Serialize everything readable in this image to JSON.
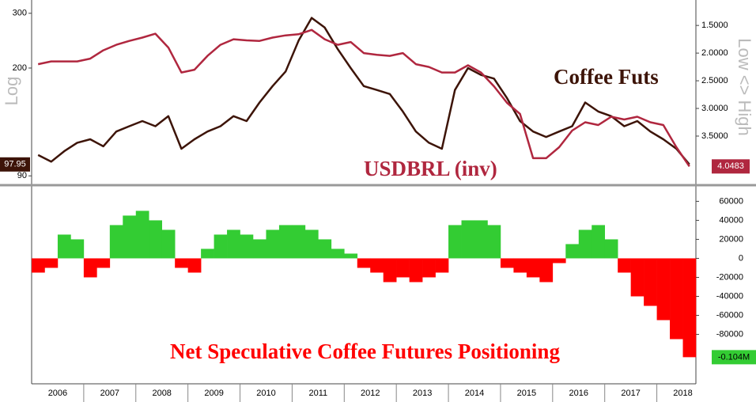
{
  "chart_data": [
    {
      "type": "line",
      "ylabel": "Log",
      "y2label": "Low <> High",
      "ylog": true,
      "ylim": [
        86,
        331
      ],
      "yticks": [
        90,
        200,
        300
      ],
      "y2lim": [
        1.04,
        4.33
      ],
      "y2_inverted": true,
      "y2ticks": [
        {
          "value": 1.5,
          "label": "1.5000"
        },
        {
          "value": 2.0,
          "label": "2.0000"
        },
        {
          "value": 2.5,
          "label": "2.5000"
        },
        {
          "value": 3.0,
          "label": "3.0000"
        },
        {
          "value": 3.5,
          "label": "3.5000"
        }
      ],
      "series": [
        {
          "name": "Coffee Futs",
          "color": "#3d1408",
          "axis": "y",
          "values": [
            105,
            100,
            108,
            115,
            118,
            112,
            125,
            130,
            135,
            130,
            140,
            110,
            118,
            125,
            130,
            140,
            135,
            155,
            175,
            195,
            245,
            290,
            270,
            230,
            200,
            175,
            170,
            165,
            145,
            125,
            115,
            110,
            170,
            200,
            190,
            185,
            160,
            135,
            125,
            120,
            125,
            130,
            155,
            145,
            140,
            130,
            135,
            125,
            118,
            110,
            97.95
          ]
        },
        {
          "name": "USDBRL (inv)",
          "color": "#b0273f",
          "axis": "y2",
          "values": [
            2.2,
            2.15,
            2.15,
            2.15,
            2.1,
            1.95,
            1.85,
            1.78,
            1.72,
            1.65,
            1.9,
            2.35,
            2.3,
            2.05,
            1.85,
            1.75,
            1.77,
            1.78,
            1.72,
            1.68,
            1.66,
            1.58,
            1.75,
            1.85,
            1.8,
            2.0,
            2.03,
            2.05,
            2.0,
            2.2,
            2.25,
            2.35,
            2.35,
            2.22,
            2.35,
            2.6,
            2.9,
            3.1,
            3.9,
            3.9,
            3.7,
            3.4,
            3.25,
            3.3,
            3.15,
            3.2,
            3.15,
            3.25,
            3.3,
            3.7,
            4.0483
          ]
        }
      ]
    },
    {
      "type": "bar",
      "title": "Net Speculative Coffee Futures Positioning",
      "categories": [
        null,
        "2006",
        null,
        null,
        null,
        "2007",
        null,
        null,
        null,
        "2008",
        null,
        null,
        null,
        "2009",
        null,
        null,
        null,
        "2010",
        null,
        null,
        null,
        "2011",
        null,
        null,
        null,
        "2012",
        null,
        null,
        null,
        "2013",
        null,
        null,
        null,
        "2014",
        null,
        null,
        null,
        "2015",
        null,
        null,
        null,
        "2016",
        null,
        null,
        null,
        "2017",
        null,
        null,
        null,
        "2018",
        null
      ],
      "values": [
        -15000,
        -10000,
        25000,
        20000,
        -20000,
        -10000,
        35000,
        45000,
        50000,
        40000,
        30000,
        -10000,
        -15000,
        10000,
        25000,
        30000,
        25000,
        20000,
        30000,
        35000,
        35000,
        30000,
        20000,
        10000,
        5000,
        -10000,
        -15000,
        -25000,
        -20000,
        -25000,
        -20000,
        -15000,
        35000,
        40000,
        40000,
        35000,
        -10000,
        -15000,
        -20000,
        -25000,
        -5000,
        15000,
        30000,
        35000,
        20000,
        -15000,
        -40000,
        -50000,
        -65000,
        -85000,
        -104000
      ],
      "value_labels": [
        null,
        null,
        null,
        null,
        null,
        null,
        null,
        null,
        null,
        null,
        null,
        null,
        null,
        null,
        null,
        null,
        null,
        null,
        null,
        null,
        null,
        null,
        null,
        null,
        null,
        null,
        null,
        null,
        null,
        null,
        null,
        null,
        null,
        null,
        null,
        null,
        null,
        null,
        null,
        null,
        null,
        null,
        null,
        null,
        null,
        null,
        null,
        null,
        null,
        null,
        "-0.104M"
      ],
      "positive_color": "#33cc33",
      "negative_color": "#ff0000",
      "ylim": [
        -132000,
        72000
      ],
      "yticks": [
        60000,
        40000,
        20000,
        0,
        -20000,
        -40000,
        -60000,
        -80000
      ]
    }
  ]
}
